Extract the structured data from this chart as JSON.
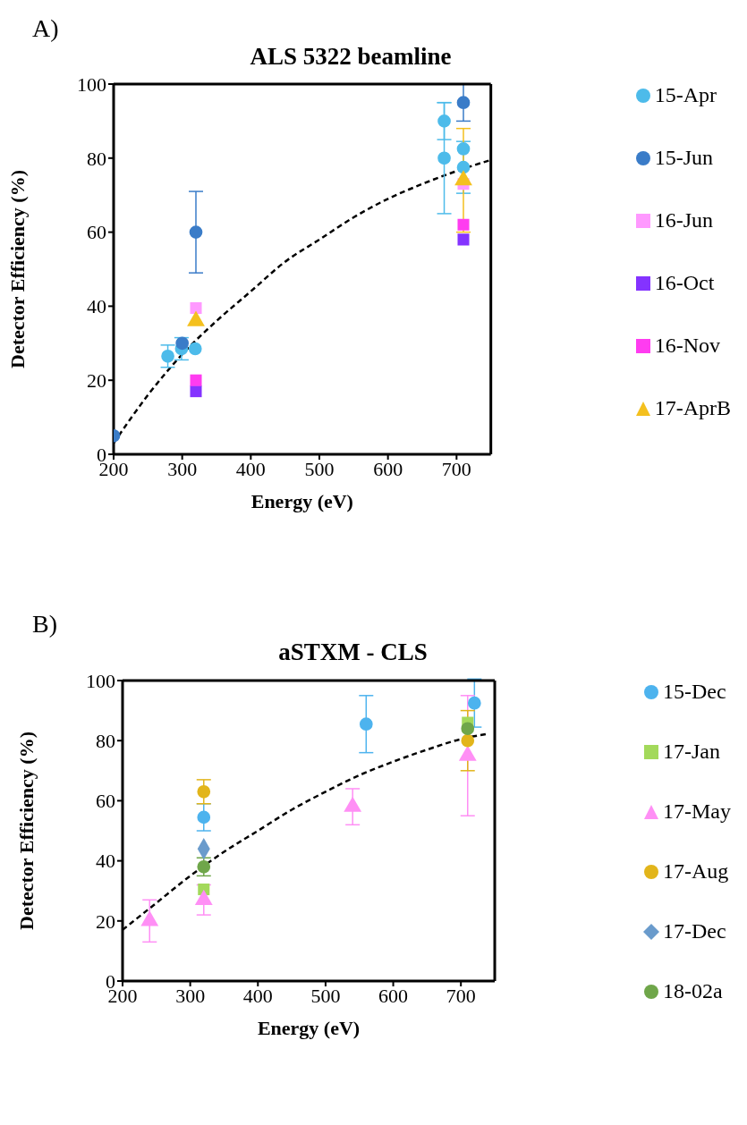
{
  "chart_data": [
    {
      "type": "scatter",
      "title": "ALS 5322 beamline",
      "annotations": [
        "A)"
      ],
      "xlabel": "Energy (eV)",
      "ylabel": "Detector Efficiency (%)",
      "xlim": [
        200,
        750
      ],
      "xticks": [
        200,
        300,
        400,
        500,
        600,
        700
      ],
      "ylim": [
        0,
        100
      ],
      "yticks": [
        0,
        20,
        40,
        60,
        80,
        100
      ],
      "legend": "right",
      "series": [
        {
          "name": "15-Apr",
          "color": "#4dbbea",
          "marker": "circle",
          "x": [
            279,
            299,
            319,
            682,
            682,
            710,
            710
          ],
          "values": [
            26.5,
            28.5,
            28.5,
            90,
            80,
            82.5,
            77.5
          ],
          "errors": [
            3,
            3,
            null,
            5,
            15,
            null,
            7
          ]
        },
        {
          "name": "15-Jun",
          "color": "#3a7cc8",
          "marker": "circle",
          "x": [
            200,
            300,
            320,
            710
          ],
          "values": [
            5,
            30,
            60,
            95
          ],
          "errors": [
            null,
            null,
            11,
            5
          ]
        },
        {
          "name": "16-Jun",
          "color": "#ff99ff",
          "marker": "square",
          "x": [
            320,
            710
          ],
          "values": [
            39.5,
            73
          ]
        },
        {
          "name": "16-Oct",
          "color": "#8433ff",
          "marker": "square",
          "x": [
            320,
            710
          ],
          "values": [
            17,
            58
          ]
        },
        {
          "name": "16-Nov",
          "color": "#ff3cf0",
          "marker": "square",
          "x": [
            320,
            710
          ],
          "values": [
            20,
            62
          ]
        },
        {
          "name": "17-AprB",
          "color": "#f4c01e",
          "marker": "triangle",
          "x": [
            320,
            710
          ],
          "values": [
            36,
            74
          ],
          "errors": [
            null,
            14
          ]
        },
        {
          "type": "line",
          "color": "#000000",
          "line_style": "dashed",
          "marker": "none",
          "x": [
            200,
            250,
            300,
            350,
            400,
            450,
            500,
            550,
            600,
            650,
            700,
            750
          ],
          "values": [
            3,
            16,
            27,
            36,
            44,
            52,
            58,
            64,
            69,
            73,
            76.5,
            79.5
          ]
        }
      ]
    },
    {
      "type": "scatter",
      "title": "aSTXM - CLS",
      "annotations": [
        "B)"
      ],
      "xlabel": "Energy (eV)",
      "ylabel": "Detector Efficiency (%)",
      "xlim": [
        200,
        750
      ],
      "xticks": [
        200,
        300,
        400,
        500,
        600,
        700
      ],
      "ylim": [
        0,
        100
      ],
      "yticks": [
        0,
        20,
        40,
        60,
        80,
        100
      ],
      "legend": "right",
      "series": [
        {
          "name": "15-Dec",
          "color": "#4db3ee",
          "marker": "circle",
          "x": [
            320,
            560,
            720
          ],
          "values": [
            54.5,
            85.5,
            92.5
          ],
          "errors": [
            4.5,
            9.5,
            8
          ]
        },
        {
          "name": "17-Jan",
          "color": "#a3d95b",
          "marker": "square",
          "x": [
            320,
            710
          ],
          "values": [
            30.5,
            86
          ]
        },
        {
          "name": "17-May",
          "color": "#ff8ff5",
          "marker": "triangle",
          "x": [
            240,
            320,
            540,
            710
          ],
          "values": [
            20,
            27,
            58,
            75
          ],
          "errors": [
            7,
            5,
            6,
            20
          ]
        },
        {
          "name": "17-Aug",
          "color": "#e2b51b",
          "marker": "circle",
          "x": [
            320,
            710
          ],
          "values": [
            63,
            80
          ],
          "errors": [
            4,
            10
          ]
        },
        {
          "name": "17-Dec",
          "color": "#6a9bcc",
          "marker": "diamond",
          "x": [
            320
          ],
          "values": [
            44
          ]
        },
        {
          "name": "18-02a",
          "color": "#6fa64a",
          "marker": "circle",
          "x": [
            320,
            710
          ],
          "values": [
            38,
            84
          ],
          "errors": [
            3,
            null
          ]
        },
        {
          "type": "line",
          "color": "#000000",
          "line_style": "dashed",
          "marker": "none",
          "x": [
            200,
            250,
            300,
            350,
            400,
            450,
            500,
            550,
            600,
            650,
            700,
            740
          ],
          "values": [
            17,
            26,
            35,
            43,
            50,
            57,
            63,
            68.5,
            73,
            77,
            80.5,
            82.3
          ]
        }
      ]
    }
  ]
}
